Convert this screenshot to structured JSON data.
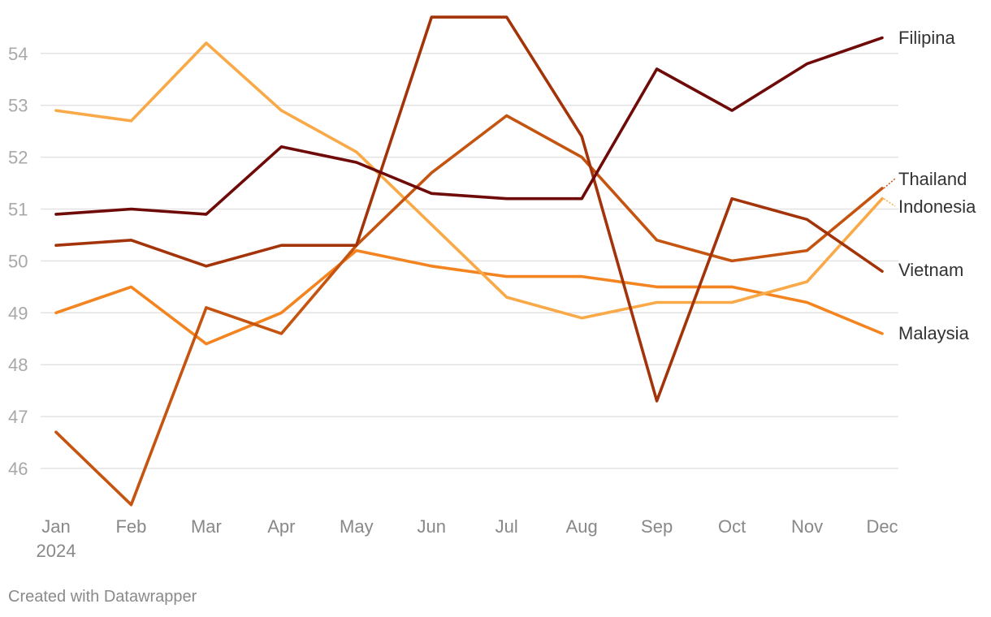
{
  "chart_data": {
    "type": "line",
    "title": "",
    "xlabel": "",
    "ylabel": "",
    "categories": [
      "Jan",
      "Feb",
      "Mar",
      "Apr",
      "May",
      "Jun",
      "Jul",
      "Aug",
      "Sep",
      "Oct",
      "Nov",
      "Dec"
    ],
    "year_label": "2024",
    "yticks": [
      46,
      47,
      48,
      49,
      50,
      51,
      52,
      53,
      54
    ],
    "ylim": [
      45.3,
      54.7
    ],
    "grid": true,
    "legend": "inline-right",
    "series": [
      {
        "name": "Filipina",
        "color": "#6e0a07",
        "values": [
          50.9,
          51.0,
          50.9,
          52.2,
          51.9,
          51.3,
          51.2,
          51.2,
          53.7,
          52.9,
          53.8,
          54.3
        ]
      },
      {
        "name": "Thailand",
        "color": "#c4540f",
        "values": [
          46.7,
          45.3,
          49.1,
          48.6,
          50.3,
          51.7,
          52.8,
          52.0,
          50.4,
          50.0,
          50.2,
          51.4
        ]
      },
      {
        "name": "Indonesia",
        "color": "#f9a947",
        "values": [
          52.9,
          52.7,
          54.2,
          52.9,
          52.1,
          50.7,
          49.3,
          48.9,
          49.2,
          49.2,
          49.6,
          51.2
        ]
      },
      {
        "name": "Vietnam",
        "color": "#a33409",
        "values": [
          50.3,
          50.4,
          49.9,
          50.3,
          50.3,
          54.7,
          54.7,
          52.4,
          47.3,
          51.2,
          50.8,
          49.8
        ]
      },
      {
        "name": "Malaysia",
        "color": "#f4841f",
        "values": [
          49.0,
          49.5,
          48.4,
          49.0,
          50.2,
          49.9,
          49.7,
          49.7,
          49.5,
          49.5,
          49.2,
          48.6
        ]
      }
    ]
  },
  "credit": "Created with Datawrapper"
}
